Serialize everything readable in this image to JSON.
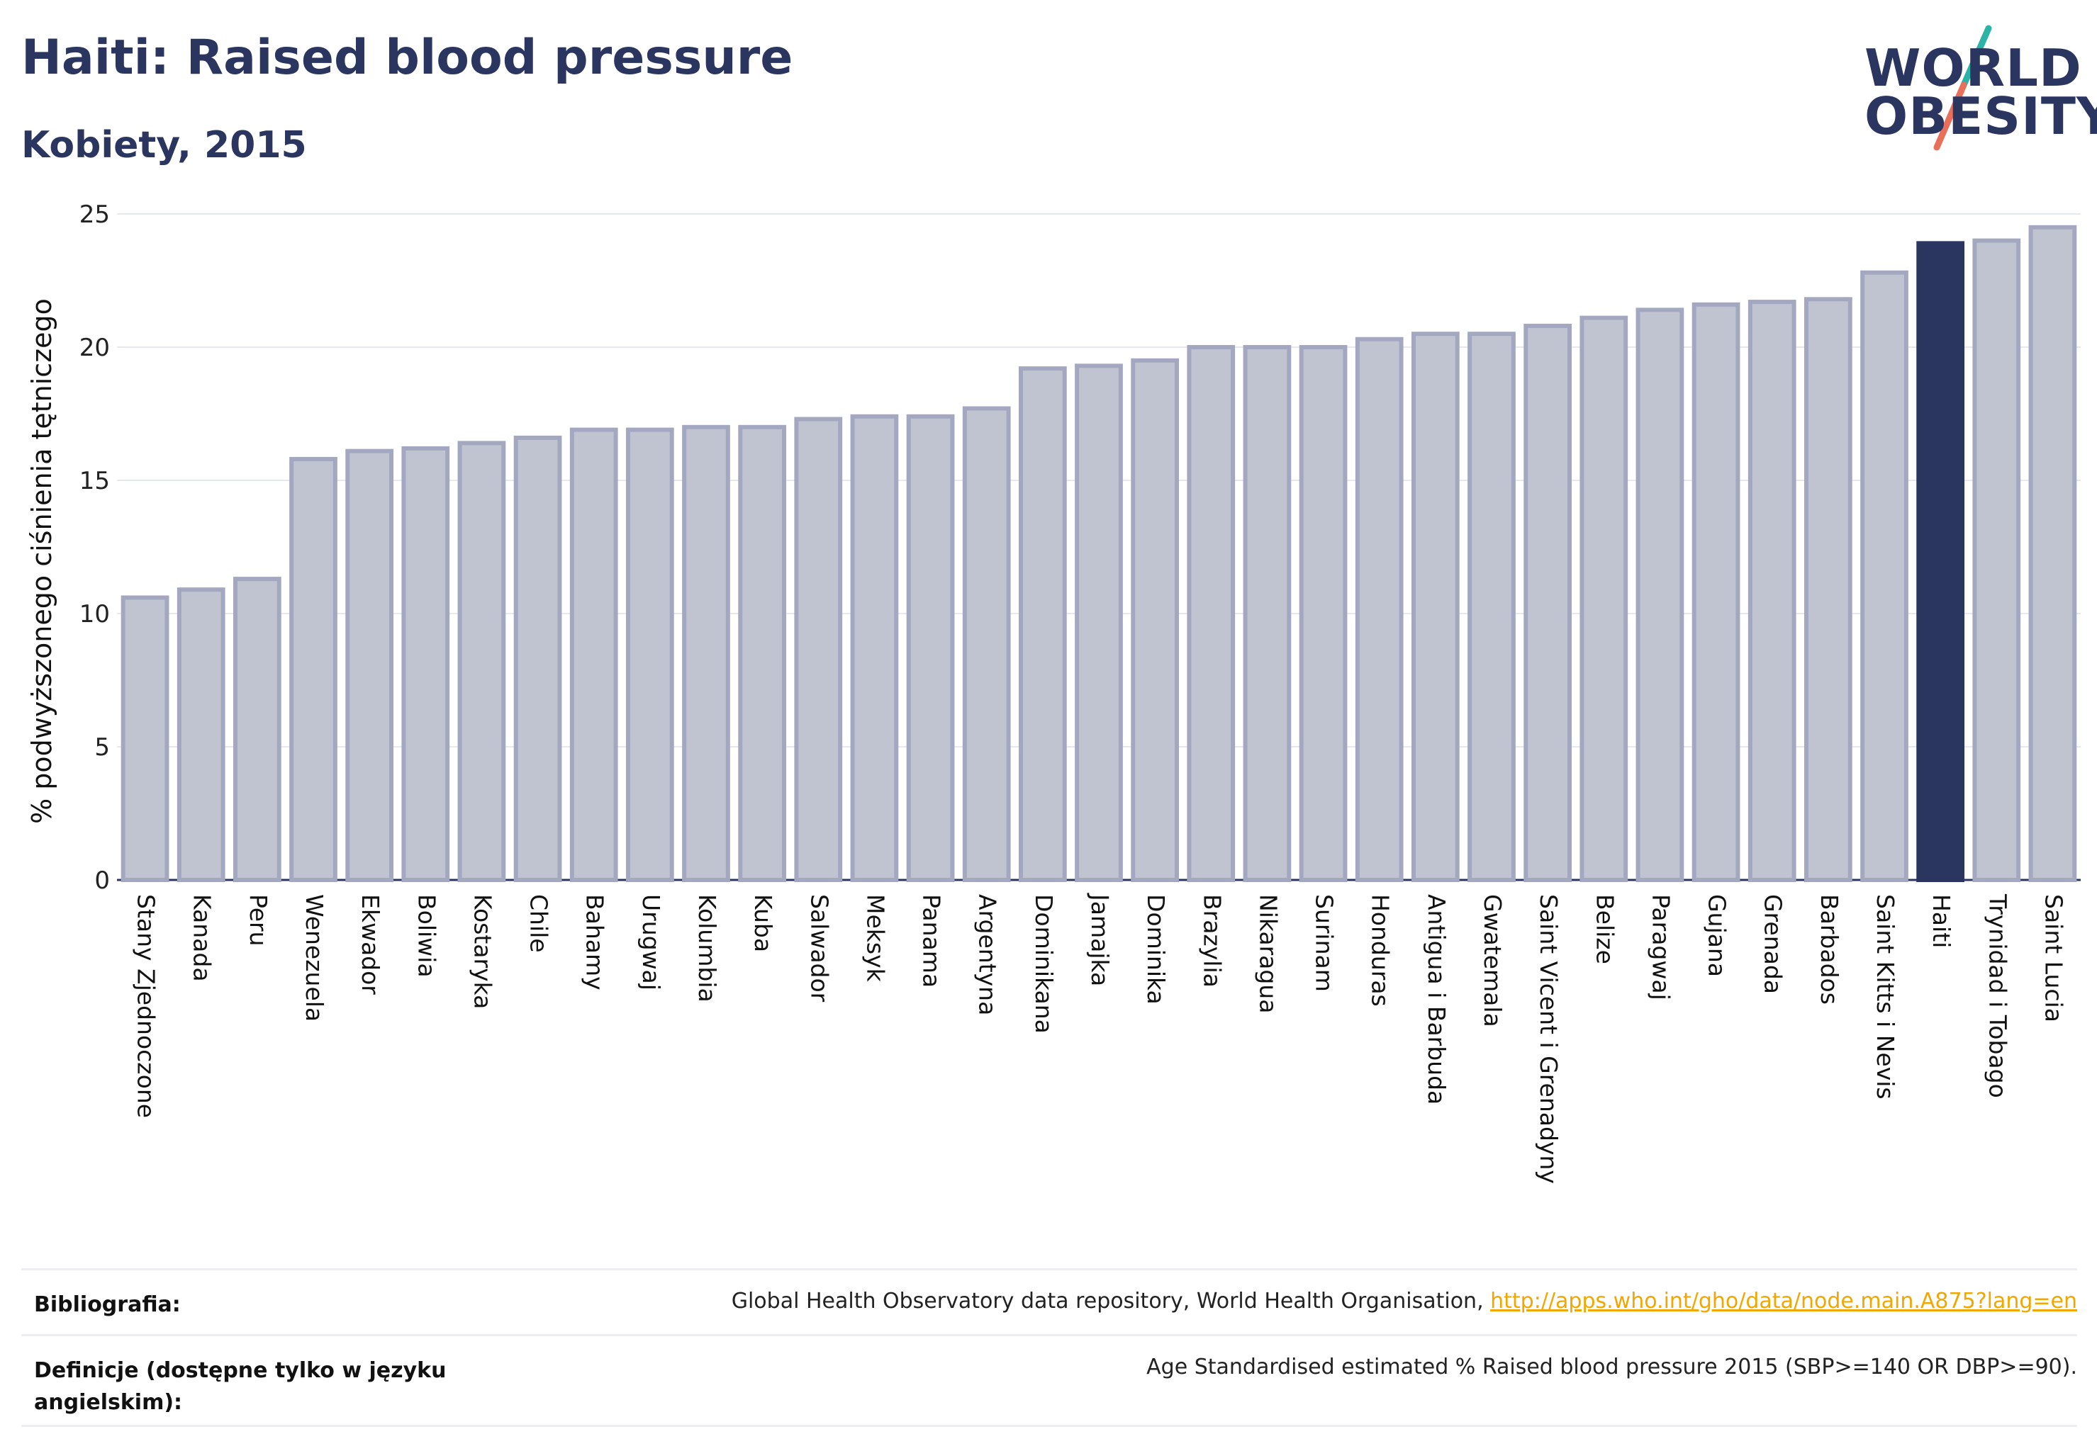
{
  "header": {
    "title": "Haiti: Raised blood pressure",
    "subtitle": "Kobiety, 2015"
  },
  "logo": {
    "line1": "WORLD",
    "line2": "OBESITY"
  },
  "colors": {
    "bar_fill": "#c0c4d0",
    "bar_stroke": "#a3a8c0",
    "highlight_fill": "#2a3560",
    "grid": "#e6e8ef",
    "logo_teal": "#2bb3a8",
    "logo_coral": "#e8705a"
  },
  "chart_data": {
    "type": "bar",
    "ylabel": "% podwyższonego ciśnienia tętniczego",
    "xlabel": "",
    "ylim": [
      0,
      25
    ],
    "yticks": [
      0,
      5,
      10,
      15,
      20,
      25
    ],
    "grid": true,
    "highlight": "Haiti",
    "categories": [
      "Stany Zjednoczone",
      "Kanada",
      "Peru",
      "Wenezuela",
      "Ekwador",
      "Boliwia",
      "Kostaryka",
      "Chile",
      "Bahamy",
      "Urugwaj",
      "Kolumbia",
      "Kuba",
      "Salwador",
      "Meksyk",
      "Panama",
      "Argentyna",
      "Dominikana",
      "Jamajka",
      "Dominika",
      "Brazylia",
      "Nikaragua",
      "Surinam",
      "Honduras",
      "Antigua i Barbuda",
      "Gwatemala",
      "Saint Vicent i Grenadyny",
      "Belize",
      "Paragwaj",
      "Gujana",
      "Grenada",
      "Barbados",
      "Saint Kitts i Nevis",
      "Haiti",
      "Trynidad i Tobago",
      "Saint Lucia"
    ],
    "values": [
      10.6,
      10.9,
      11.3,
      15.8,
      16.1,
      16.2,
      16.4,
      16.6,
      16.9,
      16.9,
      17.0,
      17.0,
      17.3,
      17.4,
      17.4,
      17.7,
      19.2,
      19.3,
      19.5,
      20.0,
      20.0,
      20.0,
      20.3,
      20.5,
      20.5,
      20.8,
      21.1,
      21.4,
      21.6,
      21.7,
      21.8,
      22.8,
      23.9,
      24.0,
      24.5
    ]
  },
  "footer": {
    "bibliography_label": "Bibliografia:",
    "bibliography_text": "Global Health Observatory data repository, World Health Organisation, ",
    "bibliography_link": "http://apps.who.int/gho/data/node.main.A875?lang=en",
    "definitions_label": "Definicje (dostępne tylko w języku angielskim):",
    "definitions_text": "Age Standardised estimated % Raised blood pressure 2015 (SBP>=140 OR DBP>=90)."
  }
}
